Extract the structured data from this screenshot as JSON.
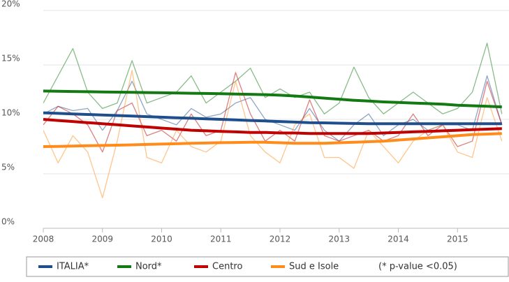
{
  "chart_data": {
    "type": "line",
    "x": [
      2008,
      2008.25,
      2008.5,
      2008.75,
      2009,
      2009.25,
      2009.5,
      2009.75,
      2010,
      2010.25,
      2010.5,
      2010.75,
      2011,
      2011.25,
      2011.5,
      2011.75,
      2012,
      2012.25,
      2012.5,
      2012.75,
      2013,
      2013.25,
      2013.5,
      2013.75,
      2014,
      2014.25,
      2014.5,
      2014.75,
      2015,
      2015.25,
      2015.5,
      2015.75
    ],
    "xlim": [
      2008,
      2015.87
    ],
    "xticks": [
      2008,
      2009,
      2010,
      2011,
      2012,
      2013,
      2014,
      2015
    ],
    "ylim": [
      0,
      20
    ],
    "yticks": [
      {
        "value": 0,
        "label": "0%"
      },
      {
        "value": 5,
        "label": "5%"
      },
      {
        "value": 10,
        "label": "10%"
      },
      {
        "value": 15,
        "label": "15%"
      },
      {
        "value": 20,
        "label": "20%"
      }
    ],
    "grid": true,
    "legend": "bottom",
    "legend_note": "(* p-value <0.05)",
    "series": [
      {
        "name": "ITALIA*",
        "color": "#1f4e8c",
        "values": [
          10.5,
          11.2,
          10.8,
          11.0,
          9.0,
          10.8,
          13.5,
          10.5,
          10.0,
          9.5,
          11.0,
          10.2,
          10.5,
          11.5,
          12.0,
          10.0,
          9.5,
          9.0,
          11.0,
          9.0,
          8.0,
          9.5,
          10.5,
          8.5,
          9.5,
          10.0,
          9.0,
          9.5,
          9.5,
          9.0,
          14.0,
          9.5
        ],
        "trend": [
          10.6,
          10.55,
          10.5,
          10.45,
          10.4,
          10.35,
          10.3,
          10.25,
          10.2,
          10.15,
          10.1,
          10.05,
          10.0,
          9.95,
          9.9,
          9.85,
          9.8,
          9.75,
          9.7,
          9.68,
          9.65,
          9.62,
          9.6,
          9.6,
          9.6,
          9.6,
          9.6,
          9.6,
          9.6,
          9.6,
          9.6,
          9.6
        ]
      },
      {
        "name": "Nord*",
        "color": "#137a13",
        "values": [
          11.5,
          14.0,
          16.5,
          12.5,
          11.0,
          11.5,
          15.4,
          11.5,
          12.0,
          12.5,
          14.0,
          11.5,
          12.5,
          13.5,
          14.7,
          12.0,
          12.8,
          12.0,
          12.5,
          10.5,
          11.5,
          14.8,
          12.0,
          10.5,
          11.5,
          12.5,
          11.5,
          10.5,
          11.0,
          12.5,
          17.0,
          10.5
        ],
        "trend": [
          12.6,
          12.58,
          12.56,
          12.54,
          12.52,
          12.5,
          12.48,
          12.46,
          12.44,
          12.42,
          12.4,
          12.38,
          12.35,
          12.32,
          12.3,
          12.27,
          12.22,
          12.15,
          12.05,
          11.95,
          11.85,
          11.75,
          11.68,
          11.6,
          11.55,
          11.5,
          11.45,
          11.4,
          11.3,
          11.25,
          11.2,
          11.15
        ]
      },
      {
        "name": "Centro",
        "color": "#c00000",
        "values": [
          9.5,
          11.2,
          10.5,
          9.5,
          7.0,
          10.8,
          11.5,
          8.5,
          9.0,
          8.0,
          10.5,
          8.5,
          9.0,
          14.3,
          10.5,
          8.0,
          9.0,
          8.0,
          11.8,
          8.5,
          8.0,
          8.5,
          9.0,
          8.0,
          8.5,
          10.5,
          8.5,
          9.5,
          7.5,
          8.0,
          13.5,
          9.5
        ],
        "trend": [
          10.0,
          9.9,
          9.8,
          9.7,
          9.6,
          9.5,
          9.4,
          9.3,
          9.2,
          9.1,
          9.0,
          8.95,
          8.9,
          8.85,
          8.8,
          8.8,
          8.75,
          8.75,
          8.7,
          8.7,
          8.7,
          8.7,
          8.7,
          8.75,
          8.8,
          8.85,
          8.9,
          8.95,
          9.0,
          9.05,
          9.1,
          9.15
        ]
      },
      {
        "name": "Sud e Isole",
        "color": "#ff8c1a",
        "values": [
          9.0,
          6.0,
          8.5,
          7.0,
          2.8,
          8.0,
          14.5,
          6.5,
          6.0,
          9.0,
          7.5,
          7.0,
          8.0,
          13.5,
          8.5,
          7.0,
          6.0,
          9.5,
          10.5,
          6.5,
          6.5,
          5.5,
          9.0,
          7.5,
          6.0,
          8.0,
          9.0,
          9.5,
          7.0,
          6.5,
          12.0,
          8.0
        ],
        "trend": [
          7.5,
          7.52,
          7.55,
          7.58,
          7.6,
          7.63,
          7.66,
          7.7,
          7.73,
          7.76,
          7.8,
          7.83,
          7.86,
          7.88,
          7.9,
          7.9,
          7.85,
          7.8,
          7.8,
          7.8,
          7.85,
          7.9,
          7.95,
          8.0,
          8.1,
          8.2,
          8.3,
          8.4,
          8.5,
          8.6,
          8.65,
          8.7
        ]
      }
    ]
  }
}
